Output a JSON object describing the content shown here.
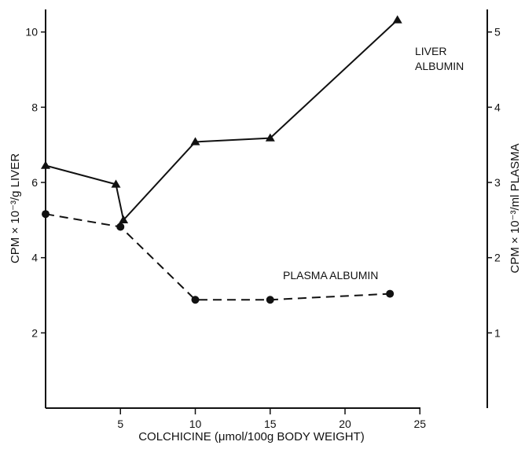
{
  "chart_data": {
    "type": "line",
    "xlabel": "COLCHICINE (μmol/100g BODY WEIGHT)",
    "ylabel_left": "CPM × 10⁻³/g  LIVER",
    "ylabel_right": "CPM × 10⁻³/ml  PLASMA",
    "xlim": [
      0,
      29.5
    ],
    "ylim_left": [
      0,
      10.6
    ],
    "ylim_right": [
      0,
      5.3
    ],
    "x_ticks": [
      5,
      10,
      15,
      20,
      25
    ],
    "x_tick_labels": [
      "5",
      "10",
      "15",
      "20",
      "25"
    ],
    "y_left_ticks": [
      2,
      4,
      6,
      8,
      10
    ],
    "y_left_tick_labels": [
      "2",
      "4",
      "6",
      "8",
      "10"
    ],
    "y_right_ticks": [
      1,
      2,
      3,
      4,
      5
    ],
    "y_right_tick_labels": [
      "1",
      "2",
      "3",
      "4",
      "5"
    ],
    "grid": false,
    "series": [
      {
        "name": "LIVER ALBUMIN",
        "label_lines": [
          "LIVER",
          "ALBUMIN"
        ],
        "axis": "left",
        "marker": "triangle",
        "line_style": "solid",
        "x": [
          0,
          4.7,
          5.2,
          10,
          15,
          23.5
        ],
        "y": [
          6.45,
          5.95,
          5.0,
          7.08,
          7.18,
          10.32
        ]
      },
      {
        "name": "PLASMA ALBUMIN",
        "label_lines": [
          "PLASMA  ALBUMIN"
        ],
        "axis": "right",
        "marker": "circle",
        "line_style": "dashed",
        "x": [
          0,
          5,
          10,
          15,
          23
        ],
        "y": [
          2.58,
          2.41,
          1.44,
          1.44,
          1.52
        ]
      }
    ]
  }
}
